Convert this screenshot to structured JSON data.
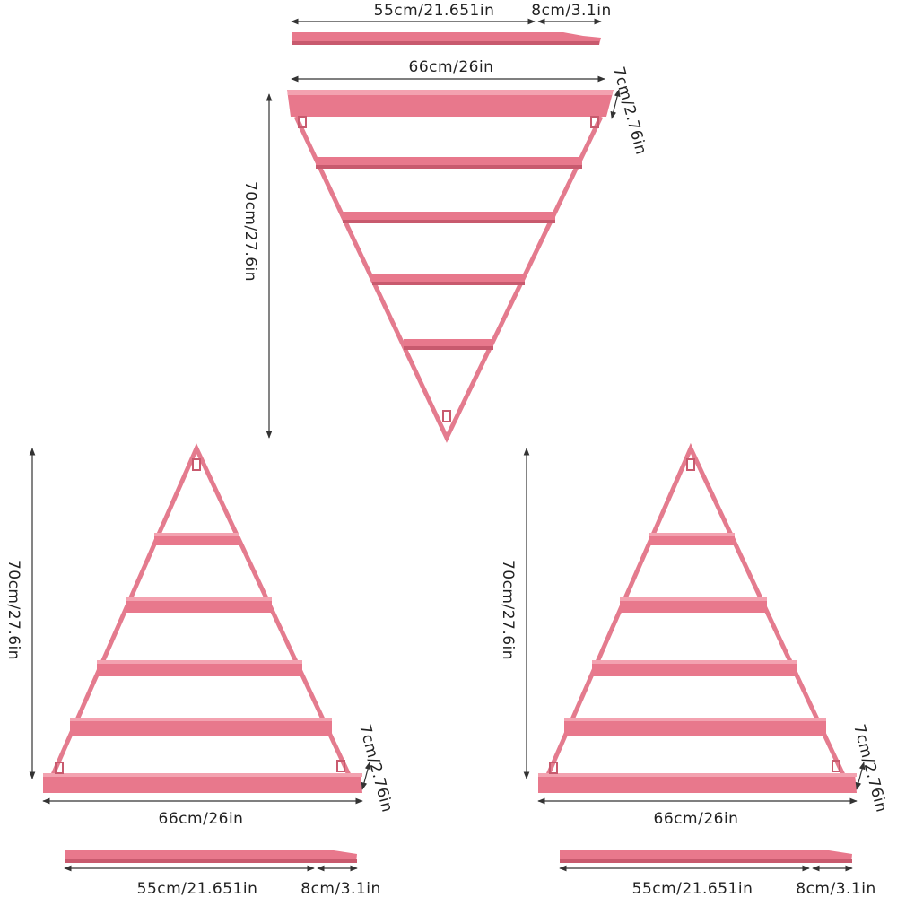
{
  "colors": {
    "shelf": "#e8788c",
    "shelf_dark": "#c85a6e",
    "shelf_light": "#f3a2b0",
    "frame": "#e47b8e",
    "dimension": "#333333",
    "background": "#ffffff"
  },
  "top_view": {
    "dims": {
      "length_55": "55cm/21.651in",
      "length_8": "8cm/3.1in",
      "width": "66cm/26in",
      "depth": "7cm/2.76in",
      "height": "70cm/27.6in"
    }
  },
  "left_view": {
    "dims": {
      "height": "70cm/27.6in",
      "depth": "7cm/2.76in",
      "width": "66cm/26in",
      "length_55": "55cm/21.651in",
      "length_8": "8cm/3.1in"
    }
  },
  "right_view": {
    "dims": {
      "height": "70cm/27.6in",
      "depth": "7cm/2.76in",
      "width": "66cm/26in",
      "length_55": "55cm/21.651in",
      "length_8": "8cm/3.1in"
    }
  },
  "icons": {
    "hanger": "keyhole-hanger-icon",
    "arrow": "arrowhead"
  }
}
